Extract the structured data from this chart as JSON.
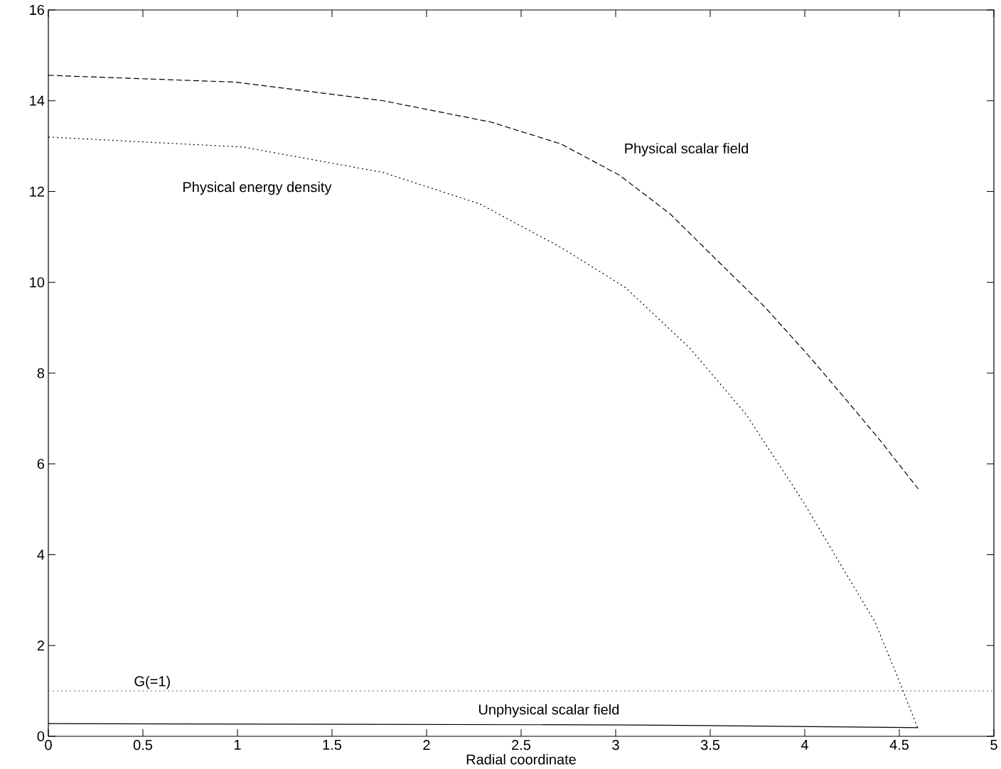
{
  "chart_data": {
    "type": "line",
    "xlabel": "Radial coordinate",
    "xlim": [
      0,
      5
    ],
    "ylim": [
      0,
      16
    ],
    "xticks": [
      0,
      0.5,
      1,
      1.5,
      2,
      2.5,
      3,
      3.5,
      4,
      4.5,
      5
    ],
    "yticks": [
      0,
      2,
      4,
      6,
      8,
      10,
      12,
      14,
      16
    ],
    "grid": false,
    "series": [
      {
        "name": "Physical scalar field",
        "color": "#000000",
        "line_style": "dashed",
        "x": [
          0,
          0.99,
          1.77,
          2.34,
          2.71,
          3.02,
          3.29,
          3.52,
          3.79,
          4.03,
          4.27,
          4.4,
          4.6
        ],
        "values": [
          14.56,
          14.41,
          14.0,
          13.53,
          13.05,
          12.36,
          11.5,
          10.55,
          9.45,
          8.34,
          7.16,
          6.51,
          5.45
        ]
      },
      {
        "name": "Physical energy density",
        "color": "#000000",
        "line_style": "dotted",
        "x": [
          0,
          1.03,
          1.77,
          2.28,
          2.71,
          3.05,
          3.39,
          3.69,
          3.99,
          4.2,
          4.37,
          4.5,
          4.6
        ],
        "values": [
          13.2,
          12.98,
          12.42,
          11.73,
          10.77,
          9.89,
          8.56,
          7.09,
          5.18,
          3.71,
          2.53,
          1.21,
          0.15
        ]
      },
      {
        "name": "Unphysical scalar field",
        "color": "#000000",
        "line_style": "solid",
        "x": [
          0,
          3.12,
          4.6
        ],
        "values": [
          0.28,
          0.25,
          0.19
        ]
      }
    ],
    "ref_lines": [
      {
        "axis": "y",
        "value": 1,
        "label": "G(=1)",
        "color": "#888888",
        "line_style": "dotted"
      }
    ]
  }
}
